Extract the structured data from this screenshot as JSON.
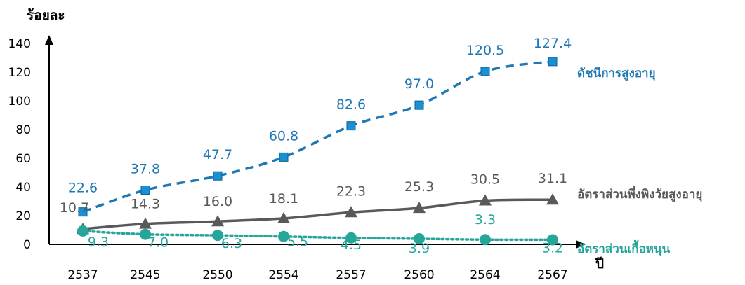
{
  "chart_data": {
    "type": "line",
    "ylabel": "ร้อยละ",
    "xlabel": "ปี",
    "x": [
      "2537",
      "2545",
      "2550",
      "2554",
      "2557",
      "2560",
      "2564",
      "2567"
    ],
    "ylim": [
      0,
      140
    ],
    "yticks": [
      "0",
      "20",
      "40",
      "60",
      "80",
      "100",
      "120",
      "140"
    ],
    "grid": false,
    "legend": "inline-right",
    "series": [
      {
        "name": "ดัชนีการสูงอายุ",
        "values": [
          22.6,
          37.8,
          47.7,
          60.8,
          82.6,
          97.0,
          120.5,
          127.4
        ],
        "labels": [
          "22.6",
          "37.8",
          "47.7",
          "60.8",
          "82.6",
          "97.0",
          "120.5",
          "127.4"
        ],
        "color": "#1f77b4",
        "style": "dashed",
        "marker": "square"
      },
      {
        "name": "อัตราส่วนพึ่งพิงวัยสูงอายุ",
        "values": [
          10.7,
          14.3,
          16.0,
          18.1,
          22.3,
          25.3,
          30.5,
          31.1
        ],
        "labels": [
          "10.7",
          "14.3",
          "16.0",
          "18.1",
          "22.3",
          "25.3",
          "30.5",
          "31.1"
        ],
        "color": "#595959",
        "style": "solid",
        "marker": "triangle"
      },
      {
        "name": "อัตราส่วนเกื้อหนุน",
        "values": [
          9.3,
          7.0,
          6.3,
          5.5,
          4.5,
          3.9,
          3.3,
          3.2
        ],
        "labels": [
          "9.3",
          "7.0",
          "6.3",
          "5.5",
          "4.5",
          "3.9",
          "3.3",
          "3.2"
        ],
        "color": "#26a69a",
        "style": "dotted",
        "marker": "circle"
      }
    ]
  }
}
